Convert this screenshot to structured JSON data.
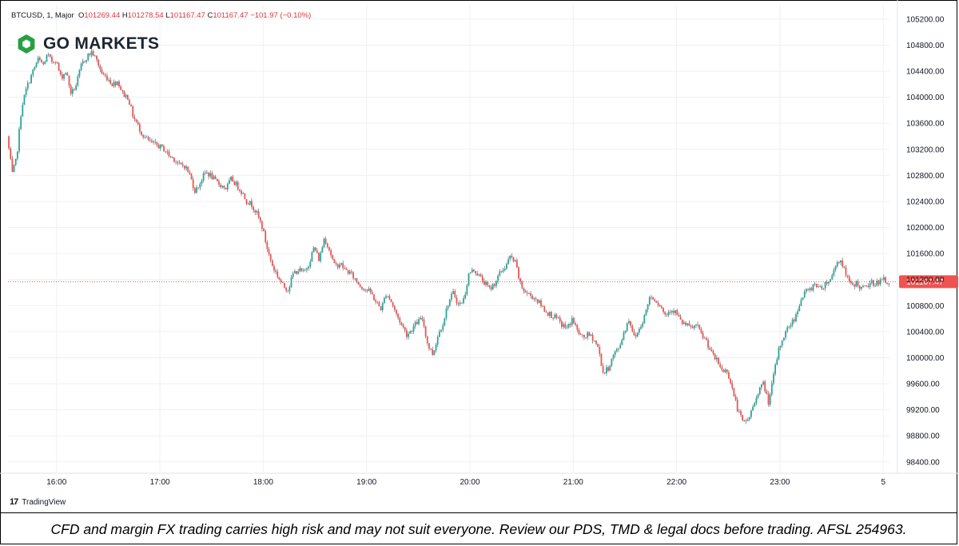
{
  "header": {
    "symbol": "BTCUSD, 1, Major",
    "o_label": "O",
    "o_value": "101269.44",
    "h_label": "H",
    "h_value": "101278.54",
    "l_label": "L",
    "l_value": "101167.47",
    "c_label": "C",
    "c_value": "101167.47",
    "change": "−101.97 (−0.10%)"
  },
  "brand": {
    "name": "GO MARKETS",
    "icon": "go-markets-logo-icon",
    "color": "#27a045"
  },
  "footer": {
    "provider": "TradingView",
    "provider_icon": "tradingview-icon"
  },
  "disclaimer": "CFD and margin FX trading carries high risk and may not suit everyone. Review our PDS, TMD & legal docs before trading. AFSL 254963.",
  "chart_data": {
    "type": "candlestick",
    "symbol": "BTCUSD",
    "interval": "1",
    "x_ticks": [
      {
        "t": 16.0,
        "label": "16:00"
      },
      {
        "t": 17.0,
        "label": "17:00"
      },
      {
        "t": 18.0,
        "label": "18:00"
      },
      {
        "t": 19.0,
        "label": "19:00"
      },
      {
        "t": 20.0,
        "label": "20:00"
      },
      {
        "t": 21.0,
        "label": "21:00"
      },
      {
        "t": 22.0,
        "label": "22:00"
      },
      {
        "t": 23.0,
        "label": "23:00"
      },
      {
        "t": 24.0,
        "label": "5"
      }
    ],
    "x_range": [
      15.53,
      24.06
    ],
    "y_ticks": [
      "105200.00",
      "104800.00",
      "104400.00",
      "104000.00",
      "103600.00",
      "103200.00",
      "102800.00",
      "102400.00",
      "102000.00",
      "101600.00",
      "101200.00",
      "100800.00",
      "100400.00",
      "100000.00",
      "99600.00",
      "99200.00",
      "98800.00",
      "98400.00"
    ],
    "y_range": [
      98250,
      105420
    ],
    "last_price": 101167.47,
    "last_price_label": "101167.47",
    "colors": {
      "up": "#26a69a",
      "down": "#ef5350",
      "grid": "#eef0f3",
      "wick": "#474d57",
      "price_line": "#ef5350"
    },
    "grid": true,
    "path": [
      [
        15.53,
        103400
      ],
      [
        15.58,
        102820
      ],
      [
        15.62,
        103050
      ],
      [
        15.67,
        103850
      ],
      [
        15.72,
        104150
      ],
      [
        15.78,
        104400
      ],
      [
        15.83,
        104580
      ],
      [
        15.88,
        104500
      ],
      [
        15.92,
        104650
      ],
      [
        15.96,
        104550
      ],
      [
        16.0,
        104580
      ],
      [
        16.05,
        104300
      ],
      [
        16.1,
        104400
      ],
      [
        16.15,
        104050
      ],
      [
        16.2,
        104200
      ],
      [
        16.25,
        104500
      ],
      [
        16.3,
        104620
      ],
      [
        16.35,
        104700
      ],
      [
        16.4,
        104550
      ],
      [
        16.45,
        104350
      ],
      [
        16.5,
        104300
      ],
      [
        16.55,
        104200
      ],
      [
        16.6,
        104250
      ],
      [
        16.65,
        104050
      ],
      [
        16.7,
        104000
      ],
      [
        16.75,
        103700
      ],
      [
        16.8,
        103550
      ],
      [
        16.85,
        103400
      ],
      [
        16.92,
        103300
      ],
      [
        17.0,
        103250
      ],
      [
        17.05,
        103200
      ],
      [
        17.1,
        103100
      ],
      [
        17.15,
        103050
      ],
      [
        17.2,
        102950
      ],
      [
        17.25,
        102950
      ],
      [
        17.3,
        102800
      ],
      [
        17.35,
        102550
      ],
      [
        17.4,
        102700
      ],
      [
        17.45,
        102850
      ],
      [
        17.5,
        102800
      ],
      [
        17.55,
        102700
      ],
      [
        17.6,
        102650
      ],
      [
        17.65,
        102600
      ],
      [
        17.7,
        102750
      ],
      [
        17.75,
        102650
      ],
      [
        17.8,
        102550
      ],
      [
        17.85,
        102400
      ],
      [
        17.9,
        102350
      ],
      [
        17.95,
        102200
      ],
      [
        18.0,
        102000
      ],
      [
        18.05,
        101650
      ],
      [
        18.1,
        101400
      ],
      [
        18.15,
        101250
      ],
      [
        18.2,
        101100
      ],
      [
        18.25,
        101050
      ],
      [
        18.3,
        101300
      ],
      [
        18.35,
        101350
      ],
      [
        18.4,
        101300
      ],
      [
        18.45,
        101450
      ],
      [
        18.5,
        101700
      ],
      [
        18.55,
        101500
      ],
      [
        18.6,
        101850
      ],
      [
        18.65,
        101650
      ],
      [
        18.7,
        101400
      ],
      [
        18.75,
        101450
      ],
      [
        18.8,
        101350
      ],
      [
        18.85,
        101300
      ],
      [
        18.9,
        101200
      ],
      [
        18.95,
        101100
      ],
      [
        19.0,
        101050
      ],
      [
        19.05,
        101000
      ],
      [
        19.1,
        100850
      ],
      [
        19.15,
        100750
      ],
      [
        19.2,
        101000
      ],
      [
        19.25,
        100850
      ],
      [
        19.3,
        100650
      ],
      [
        19.35,
        100500
      ],
      [
        19.4,
        100350
      ],
      [
        19.45,
        100450
      ],
      [
        19.5,
        100550
      ],
      [
        19.55,
        100600
      ],
      [
        19.6,
        100200
      ],
      [
        19.65,
        100050
      ],
      [
        19.7,
        100350
      ],
      [
        19.75,
        100550
      ],
      [
        19.8,
        100850
      ],
      [
        19.85,
        101000
      ],
      [
        19.9,
        100800
      ],
      [
        19.95,
        100900
      ],
      [
        20.0,
        101300
      ],
      [
        20.05,
        101350
      ],
      [
        20.1,
        101250
      ],
      [
        20.15,
        101150
      ],
      [
        20.2,
        101050
      ],
      [
        20.25,
        101150
      ],
      [
        20.3,
        101300
      ],
      [
        20.35,
        101400
      ],
      [
        20.4,
        101550
      ],
      [
        20.45,
        101450
      ],
      [
        20.5,
        101100
      ],
      [
        20.55,
        101000
      ],
      [
        20.6,
        100950
      ],
      [
        20.65,
        100900
      ],
      [
        20.7,
        100800
      ],
      [
        20.75,
        100700
      ],
      [
        20.8,
        100650
      ],
      [
        20.85,
        100600
      ],
      [
        20.9,
        100500
      ],
      [
        20.95,
        100450
      ],
      [
        21.0,
        100600
      ],
      [
        21.05,
        100400
      ],
      [
        21.1,
        100300
      ],
      [
        21.15,
        100350
      ],
      [
        21.2,
        100300
      ],
      [
        21.25,
        100150
      ],
      [
        21.3,
        99750
      ],
      [
        21.35,
        99850
      ],
      [
        21.4,
        100050
      ],
      [
        21.45,
        100150
      ],
      [
        21.5,
        100400
      ],
      [
        21.55,
        100600
      ],
      [
        21.6,
        100300
      ],
      [
        21.65,
        100450
      ],
      [
        21.7,
        100650
      ],
      [
        21.75,
        100950
      ],
      [
        21.8,
        100900
      ],
      [
        21.85,
        100800
      ],
      [
        21.9,
        100650
      ],
      [
        21.95,
        100750
      ],
      [
        22.0,
        100700
      ],
      [
        22.05,
        100550
      ],
      [
        22.1,
        100500
      ],
      [
        22.15,
        100450
      ],
      [
        22.2,
        100500
      ],
      [
        22.25,
        100350
      ],
      [
        22.3,
        100250
      ],
      [
        22.35,
        100050
      ],
      [
        22.4,
        99950
      ],
      [
        22.45,
        99800
      ],
      [
        22.5,
        99800
      ],
      [
        22.55,
        99500
      ],
      [
        22.6,
        99200
      ],
      [
        22.65,
        99000
      ],
      [
        22.7,
        99050
      ],
      [
        22.75,
        99250
      ],
      [
        22.8,
        99500
      ],
      [
        22.85,
        99600
      ],
      [
        22.9,
        99300
      ],
      [
        22.95,
        99750
      ],
      [
        23.0,
        100150
      ],
      [
        23.05,
        100350
      ],
      [
        23.1,
        100500
      ],
      [
        23.15,
        100600
      ],
      [
        23.2,
        100850
      ],
      [
        23.25,
        101000
      ],
      [
        23.3,
        101050
      ],
      [
        23.35,
        101150
      ],
      [
        23.4,
        101050
      ],
      [
        23.45,
        101150
      ],
      [
        23.5,
        101200
      ],
      [
        23.55,
        101450
      ],
      [
        23.6,
        101500
      ],
      [
        23.65,
        101250
      ],
      [
        23.7,
        101100
      ],
      [
        23.75,
        101150
      ],
      [
        23.8,
        101050
      ],
      [
        23.85,
        101100
      ],
      [
        23.9,
        101150
      ],
      [
        23.95,
        101150
      ],
      [
        24.0,
        101200
      ],
      [
        24.05,
        101170
      ]
    ],
    "seed": 7
  }
}
